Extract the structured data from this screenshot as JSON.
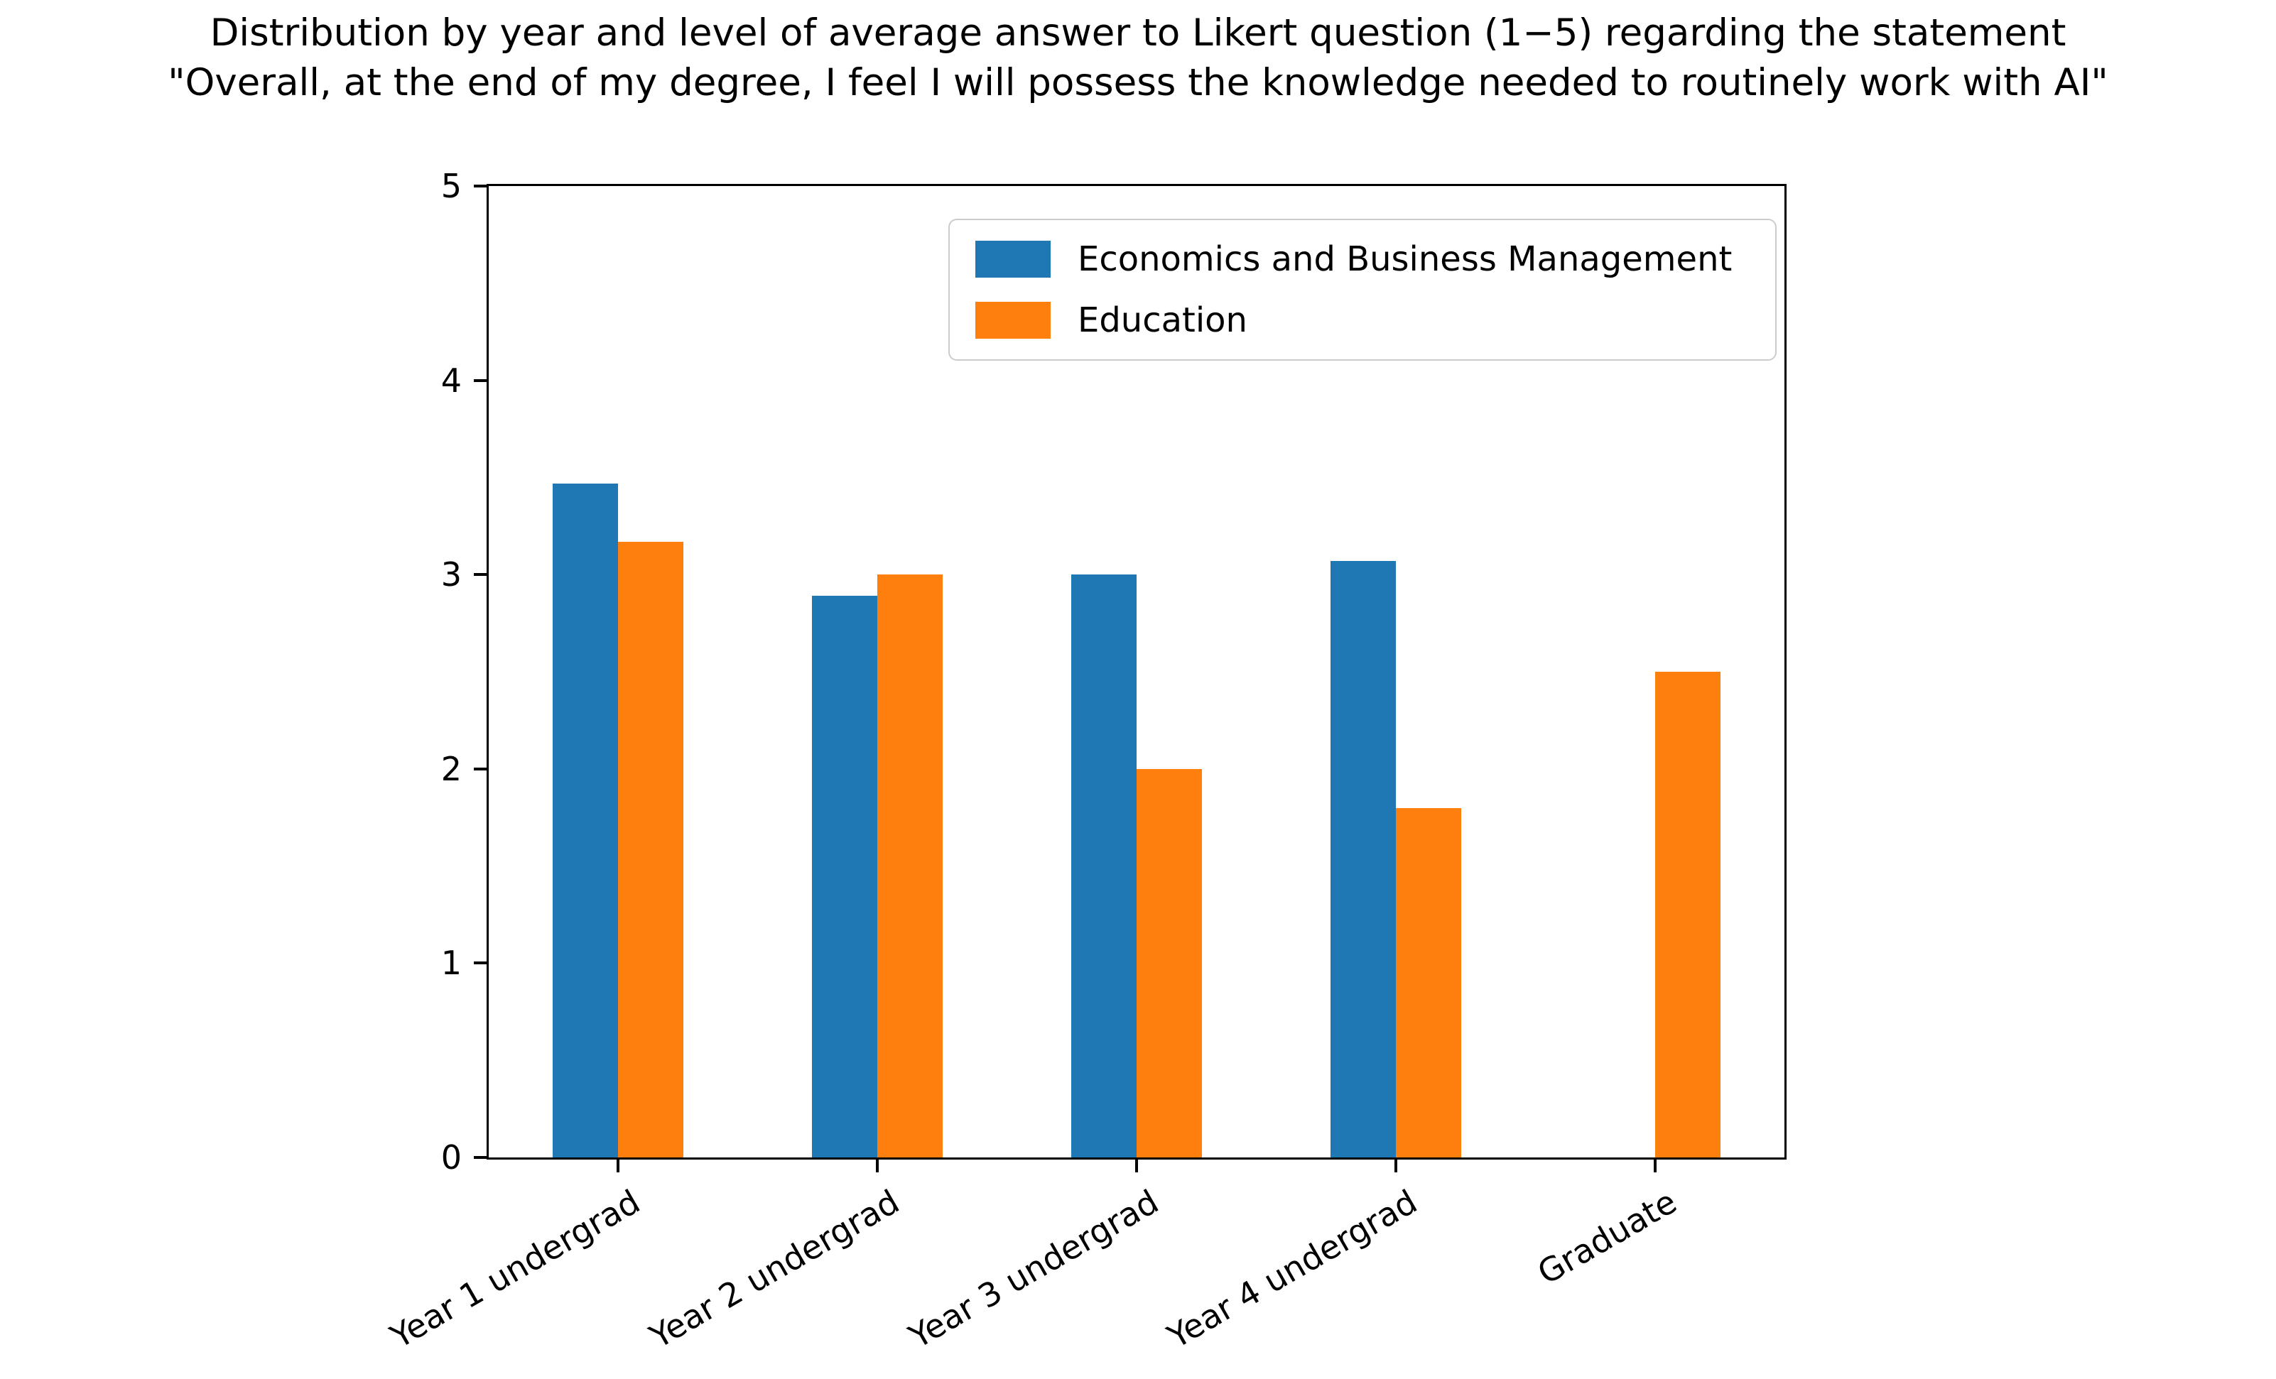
{
  "chart_data": {
    "type": "bar",
    "title": "Distribution by year and level of average answer to Likert question (1−5) regarding the statement \"Overall, at the end of my degree, I feel I will possess the knowledge needed to routinely work with AI\"",
    "title_lines": [
      "Distribution by year and level of average answer to Likert question (1−5) regarding the statement",
      "\"Overall, at the end of my degree, I feel I will possess the knowledge needed to routinely work with AI\""
    ],
    "categories": [
      "Year 1 undergrad",
      "Year 2 undergrad",
      "Year 3 undergrad",
      "Year 4 undergrad",
      "Graduate"
    ],
    "series": [
      {
        "name": "Economics and Business Management",
        "color": "#1f77b4",
        "values": [
          3.47,
          2.89,
          3.0,
          3.07,
          null
        ]
      },
      {
        "name": "Education",
        "color": "#ff7f0e",
        "values": [
          3.17,
          3.0,
          2.0,
          1.8,
          2.5
        ]
      }
    ],
    "xlabel": "",
    "ylabel": "",
    "ylim": [
      0,
      5
    ],
    "yticks": [
      0,
      1,
      2,
      3,
      4,
      5
    ],
    "grid": false,
    "legend_position": "upper right inside",
    "xtick_label_rotation_deg": 30,
    "bar_width_fraction": 0.25,
    "axis_color": "#000000",
    "legend_border_color": "#cccccc",
    "background_color": "#ffffff"
  }
}
